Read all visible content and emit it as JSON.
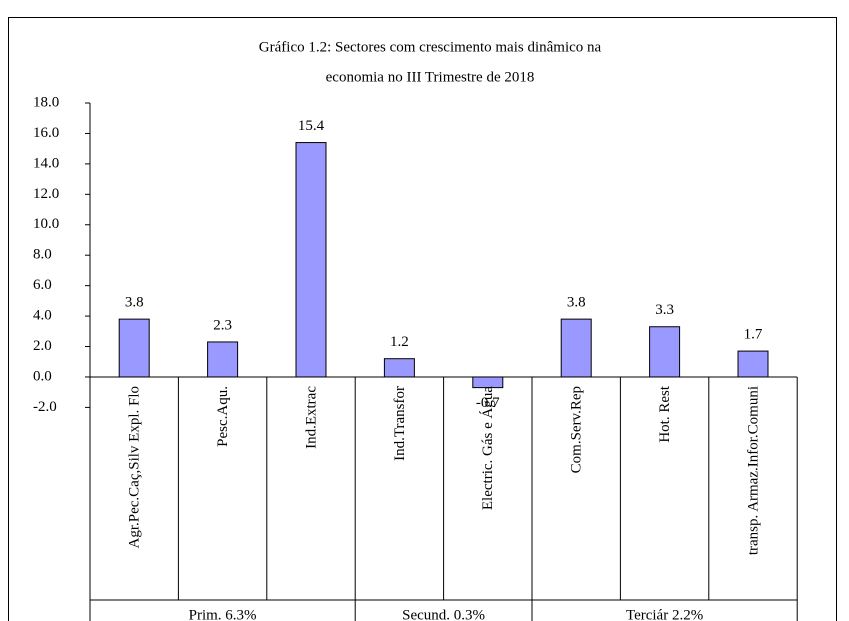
{
  "chart_data": {
    "type": "bar",
    "title_lines": [
      "Gráfico  1.2: Sectores com crescimento mais dinâmico na",
      "economia no III Trimestre  de 2018"
    ],
    "categories": [
      "Agr.Pec.Caç,Silv Expl. Flo",
      "Pesc.Aqu.",
      "Ind.Extrac",
      "Ind.Transfor",
      "Electric. Gás e Água",
      "Com.Serv.Rep",
      "Hot. Rest",
      "transp. Armaz.Infor.Comuni"
    ],
    "values": [
      3.8,
      2.3,
      15.4,
      1.2,
      -0.7,
      3.8,
      3.3,
      1.7
    ],
    "color": "#9999ff",
    "groups": [
      {
        "label": "Prim. 6.3%",
        "size": 3
      },
      {
        "label": "Secund. 0.3%",
        "size": 2
      },
      {
        "label": "Terciár 2.2%",
        "size": 3
      }
    ],
    "ylim": [
      -2,
      18
    ],
    "yticks": [
      {
        "value": -2,
        "label": "-2.0"
      },
      {
        "value": 0,
        "label": "0.0"
      },
      {
        "value": 2,
        "label": "2.0"
      },
      {
        "value": 4,
        "label": "4.0"
      },
      {
        "value": 6,
        "label": "6.0"
      },
      {
        "value": 8,
        "label": "8.0"
      },
      {
        "value": 10,
        "label": "10.0"
      },
      {
        "value": 12,
        "label": "12.0"
      },
      {
        "value": 14,
        "label": "14.0"
      },
      {
        "value": 16,
        "label": "16.0"
      },
      {
        "value": 18,
        "label": "18.0"
      }
    ]
  }
}
